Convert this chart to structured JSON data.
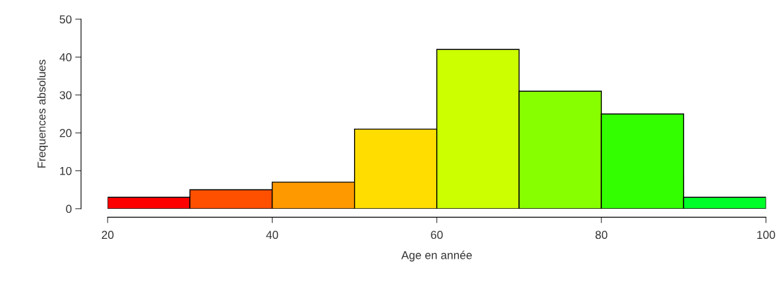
{
  "chart_data": {
    "type": "histogram",
    "xlabel": "Age en année",
    "ylabel": "Frequences absolues",
    "bins": [
      20,
      30,
      40,
      50,
      60,
      70,
      80,
      90,
      100
    ],
    "values": [
      3,
      5,
      7,
      21,
      42,
      31,
      25,
      3
    ],
    "colors": [
      "#ff0000",
      "#ff5000",
      "#ff9900",
      "#ffdd00",
      "#ccff00",
      "#88ff00",
      "#33ff00",
      "#00ff2a"
    ],
    "xlim": [
      20,
      100
    ],
    "xticks": [
      20,
      40,
      60,
      80,
      100
    ],
    "ylim": [
      0,
      50
    ],
    "yticks": [
      0,
      10,
      20,
      30,
      40,
      50
    ],
    "grid": false,
    "legend": false
  }
}
